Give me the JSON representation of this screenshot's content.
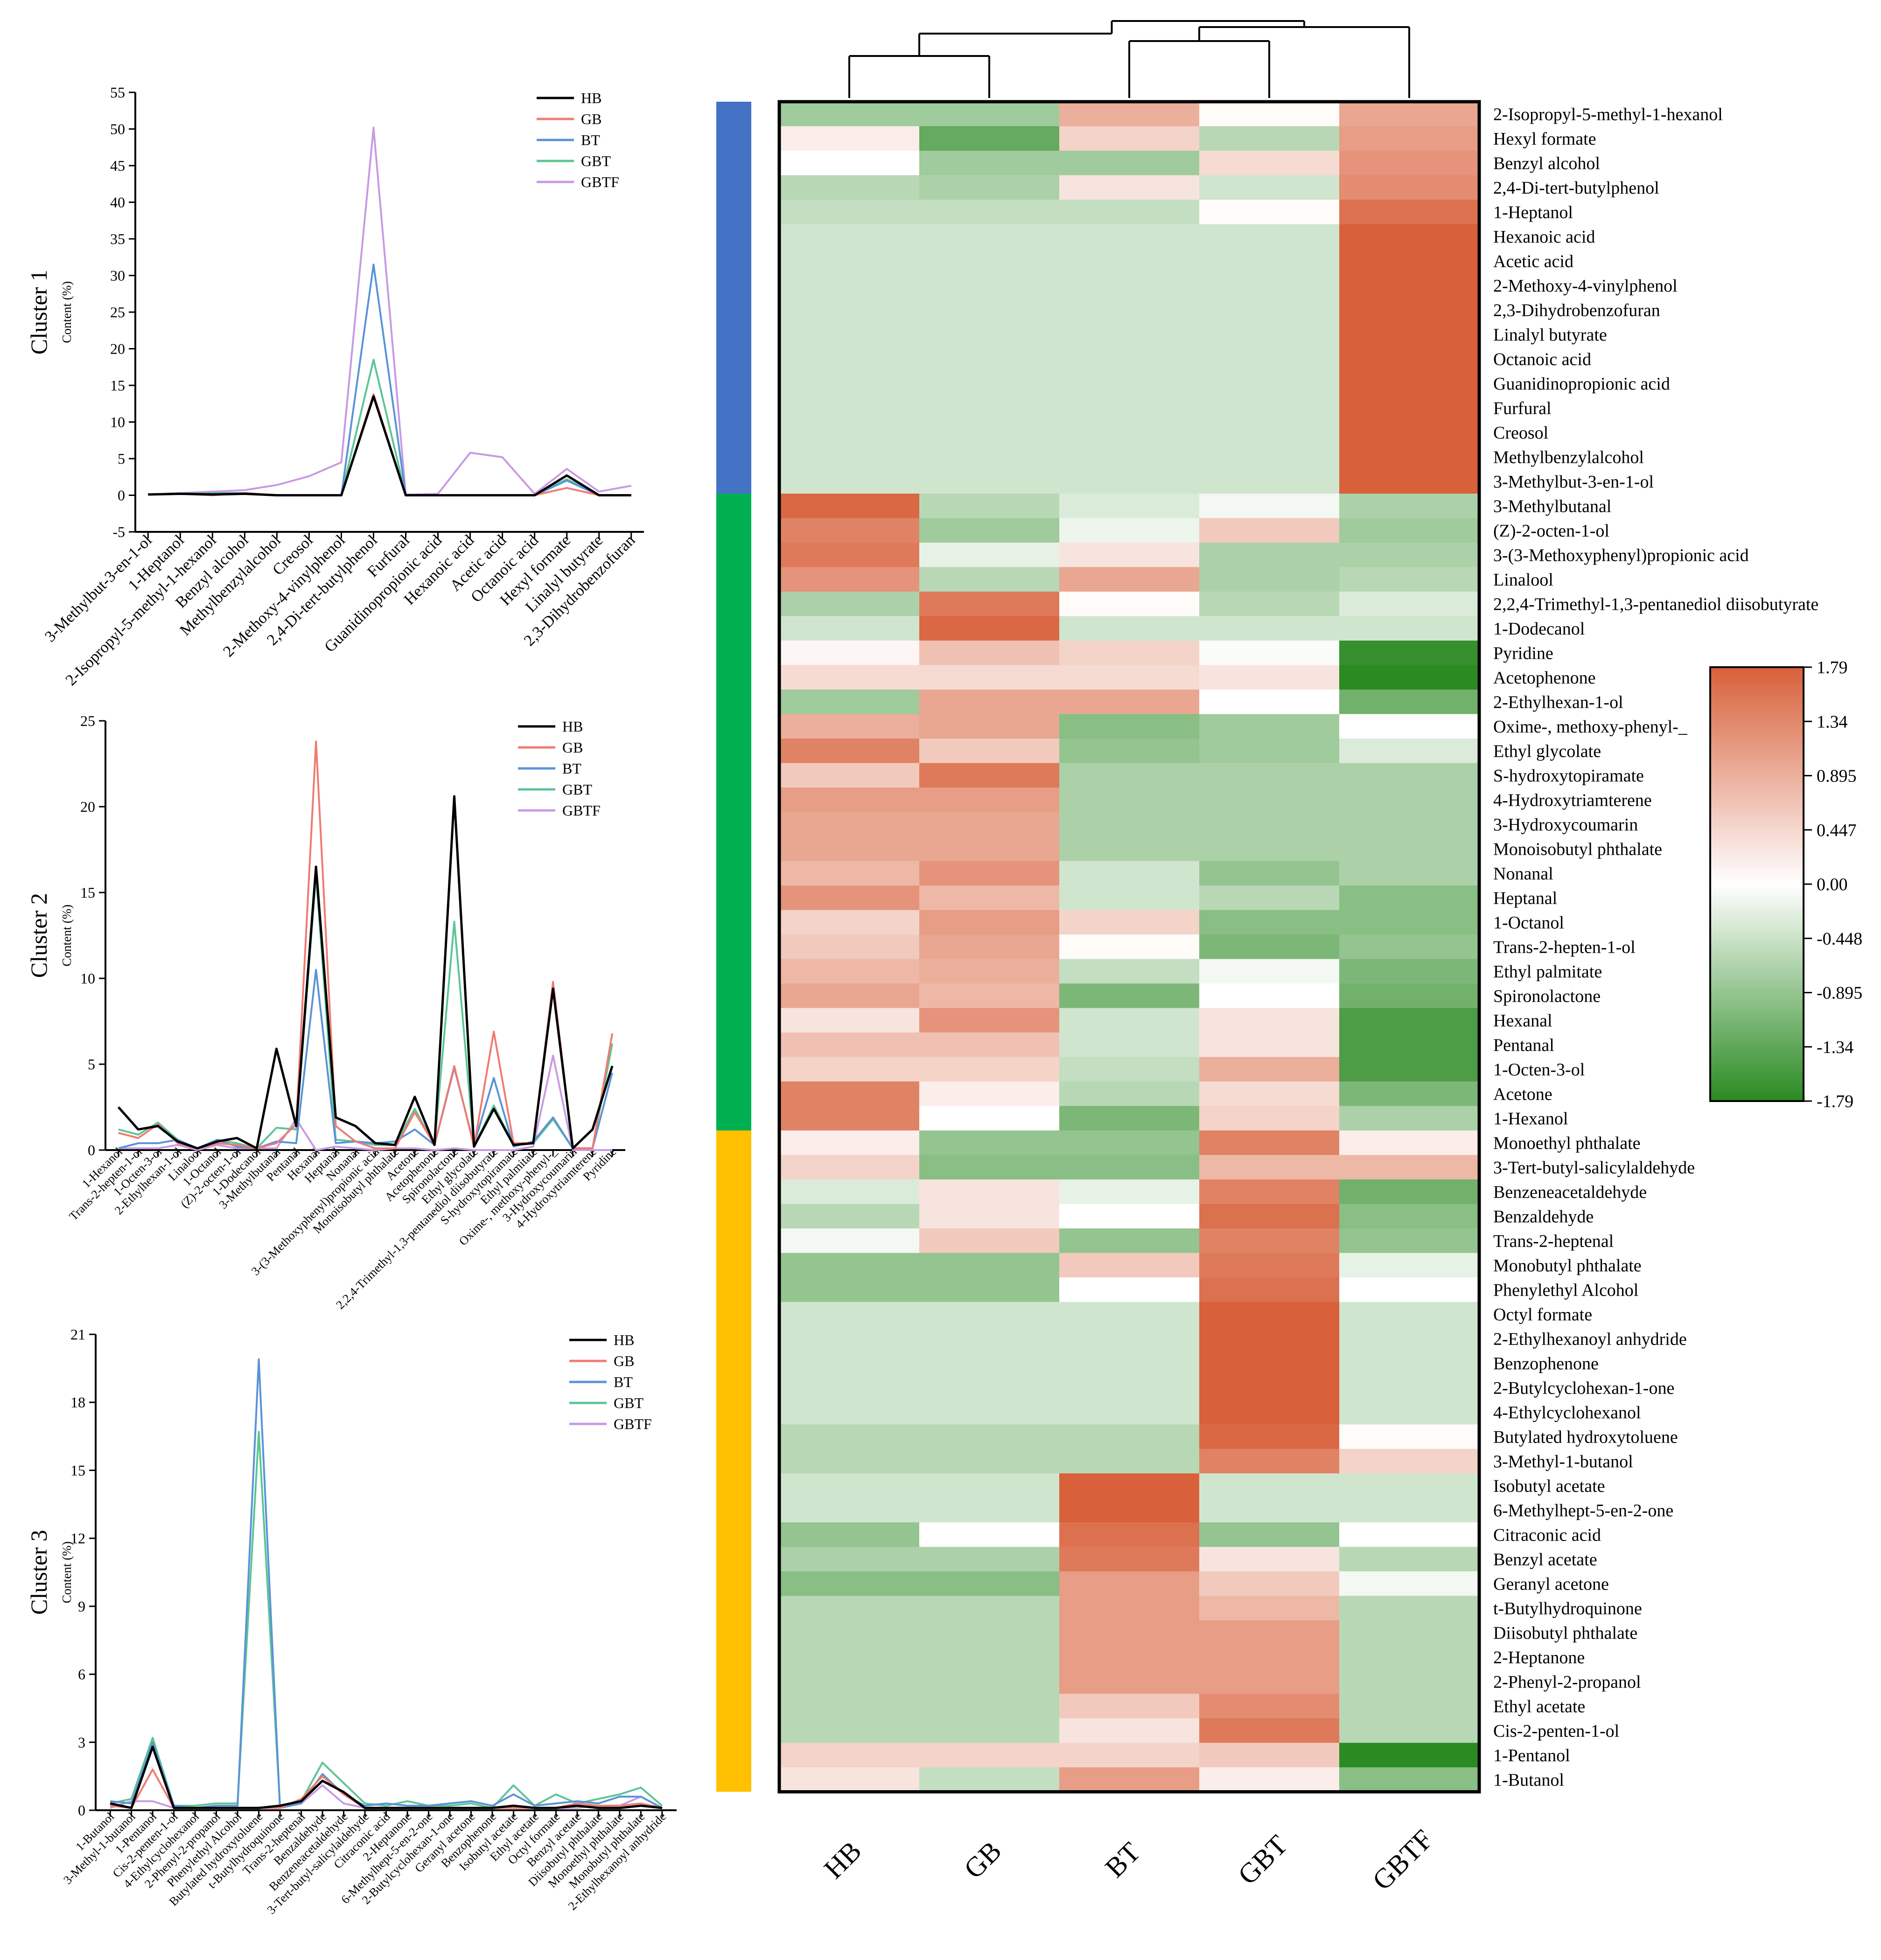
{
  "series_names": [
    "HB",
    "GB",
    "BT",
    "GBT",
    "GBTF"
  ],
  "series_colors": [
    "#000000",
    "#ef7b72",
    "#5a93d6",
    "#5cc594",
    "#c79ae3"
  ],
  "line_charts": [
    {
      "ylabel": "Cluster 1",
      "yunit": "Content (%)",
      "ylim": [
        -5,
        55
      ],
      "yticks": [
        -5,
        0,
        5,
        10,
        15,
        20,
        25,
        30,
        35,
        40,
        45,
        50,
        55
      ],
      "legend": "top-right",
      "categories": [
        "3-Methylbut-3-en-1-ol",
        "1-Heptanol",
        "2-Isopropyl-5-methyl-1-hexanol",
        "Benzyl alcohol",
        "Methylbenzylalcohol",
        "Creosol",
        "2-Methoxy-4-vinylphenol",
        "2,4-Di-tert-butylphenol",
        "Furfural",
        "Guanidinopropionic acid",
        "Hexanoic acid",
        "Acetic acid",
        "Octanoic acid",
        "Hexyl formate",
        "Linalyl butyrate",
        "2,3-Dihydrobenzofuran"
      ],
      "series": [
        {
          "name": "HB",
          "values": [
            0.1,
            0.2,
            0.1,
            0.2,
            0,
            0,
            0,
            13.5,
            0,
            0,
            0,
            0,
            0,
            2.7,
            0,
            0
          ]
        },
        {
          "name": "GB",
          "values": [
            0.1,
            0.2,
            0,
            0.3,
            0,
            0,
            0,
            13.8,
            0,
            0,
            0,
            0,
            0,
            1,
            0,
            0
          ]
        },
        {
          "name": "BT",
          "values": [
            0.1,
            0.2,
            0.2,
            0.3,
            0,
            0,
            0,
            31.5,
            0,
            0,
            0,
            0,
            0,
            2,
            0,
            0
          ]
        },
        {
          "name": "GBT",
          "values": [
            0.1,
            0.2,
            0.3,
            0.3,
            0,
            0,
            0,
            18.5,
            0,
            0,
            0,
            0,
            0,
            2.2,
            0,
            0
          ]
        },
        {
          "name": "GBTF",
          "values": [
            0.1,
            0.3,
            0.5,
            0.7,
            1.4,
            2.6,
            4.5,
            50.2,
            0.1,
            0.2,
            5.8,
            5.2,
            0.2,
            3.6,
            0.5,
            1.3
          ]
        }
      ]
    },
    {
      "ylabel": "Cluster 2",
      "yunit": "Content (%)",
      "ylim": [
        0,
        25
      ],
      "yticks": [
        0,
        5,
        10,
        15,
        20,
        25
      ],
      "legend": "top-right",
      "categories": [
        "1-Hexanol",
        "Trans-2-hepten-1-ol",
        "1-Octen-3-ol",
        "2-Ethylhexan-1-ol",
        "Linalool",
        "1-Octanol",
        "(Z)-2-octen-1-ol",
        "1-Dodecanol",
        "3-Methylbutanal",
        "Pentanal",
        "Hexanal",
        "Heptanal",
        "Nonanal",
        "3-(3-Methoxyphenyl)propionic acid",
        "Monoisobutyl phthalate",
        "Acetone",
        "Acetophenone",
        "Spironolactone",
        "Ethyl glycolate",
        "2,2,4-Trimethyl-1,3-pentanediol diisobutyrate",
        "S-hydroxytopiramate",
        "Ethyl palmitate",
        "Oxime-, methoxy-phenyl-_",
        "3-Hydroxycoumarin",
        "4-Hydroxytriamterene",
        "Pyridine"
      ],
      "series": [
        {
          "name": "HB",
          "values": [
            2.5,
            1.2,
            1.4,
            0.5,
            0.1,
            0.5,
            0.7,
            0.1,
            5.9,
            1.4,
            16.5,
            1.9,
            1.4,
            0.4,
            0.3,
            3.1,
            0.3,
            20.6,
            0.2,
            2.4,
            0.3,
            0.4,
            9.4,
            0.1,
            1.2,
            4.9
          ]
        },
        {
          "name": "GB",
          "values": [
            1,
            0.7,
            1.5,
            0.4,
            0.1,
            0.4,
            0.3,
            0.1,
            0.4,
            1.5,
            23.8,
            1.4,
            0.5,
            0.1,
            0.1,
            2.2,
            0.3,
            4.9,
            0.2,
            6.9,
            0.4,
            0.4,
            9.8,
            0.1,
            0.1,
            6.8
          ]
        },
        {
          "name": "BT",
          "values": [
            0.1,
            0.4,
            0.4,
            0.6,
            0.1,
            0.6,
            0.2,
            0.1,
            0.5,
            0.4,
            10.5,
            0.4,
            0.5,
            0.4,
            0.5,
            1.2,
            0.3,
            4.8,
            0.3,
            4.2,
            0.2,
            0.5,
            1.9,
            0.1,
            0.1,
            4.5
          ]
        },
        {
          "name": "GBT",
          "values": [
            1.2,
            0.9,
            1.6,
            0.6,
            0.1,
            0.6,
            0.4,
            0.1,
            1.3,
            1.2,
            16,
            0.6,
            0.5,
            0.3,
            0.3,
            2.4,
            0.3,
            13.3,
            0.2,
            2.6,
            0.3,
            0.4,
            1.8,
            0.1,
            0.1,
            6.2
          ]
        },
        {
          "name": "GBTF",
          "values": [
            0.1,
            0.1,
            0.1,
            0.3,
            0,
            0.3,
            0.1,
            0.1,
            0.1,
            1.8,
            0,
            0.2,
            0.1,
            0,
            0.1,
            0.1,
            0,
            0.1,
            0,
            0,
            0,
            0.2,
            5.5,
            0,
            0,
            0
          ]
        }
      ]
    },
    {
      "ylabel": "Cluster 3",
      "yunit": "Content (%)",
      "ylim": [
        0,
        21
      ],
      "yticks": [
        0,
        3,
        6,
        9,
        12,
        15,
        18,
        21
      ],
      "legend": "top-right",
      "categories": [
        "1-Butanol",
        "3-Methyl-1-butanol",
        "1-Pentanol",
        "Cis-2-penten-1-ol",
        "4-Ethylcyclohexanol",
        "2-Phenyl-2-propanol",
        "Phenylethyl Alcohol",
        "Butylated hydroxytoluene",
        "t-Butylhydroquinone",
        "Trans-2-heptenal",
        "Benzaldehyde",
        "Benzeneacetaldehyde",
        "3-Tert-butyl-salicylaldehyde",
        "Citraconic acid",
        "2-Heptanone",
        "6-Methylhept-5-en-2-one",
        "2-Butylcyclohexan-1-one",
        "Geranyl acetone",
        "Benzophenone",
        "Isobutyl acetate",
        "Ethyl acetate",
        "Octyl formate",
        "Benzyl acetate",
        "Diisobutyl phthalate",
        "Monoethyl phthalate",
        "Monobutyl phthalate",
        "2-Ethylhexanoyl anhydride"
      ],
      "series": [
        {
          "name": "HB",
          "values": [
            0.3,
            0.1,
            2.8,
            0.1,
            0.1,
            0.1,
            0.1,
            0.1,
            0.2,
            0.4,
            1.3,
            0.8,
            0.1,
            0.1,
            0.1,
            0.1,
            0.1,
            0.1,
            0.1,
            0.2,
            0.1,
            0.1,
            0.2,
            0.1,
            0.1,
            0.2,
            0.1
          ]
        },
        {
          "name": "GB",
          "values": [
            0.2,
            0.1,
            1.8,
            0.1,
            0.1,
            0.1,
            0.1,
            0.1,
            0.1,
            0.5,
            1.5,
            0.7,
            0.1,
            0.1,
            0.1,
            0.1,
            0.1,
            0.1,
            0.1,
            0.1,
            0.1,
            0.1,
            0.3,
            0.2,
            0.2,
            0.3,
            0.1
          ]
        },
        {
          "name": "BT",
          "values": [
            0.4,
            0.3,
            3,
            0.2,
            0.1,
            0.2,
            0.2,
            19.9,
            0.1,
            0.3,
            1.6,
            0.7,
            0.2,
            0.3,
            0.2,
            0.2,
            0.3,
            0.4,
            0.2,
            0.7,
            0.2,
            0.3,
            0.4,
            0.3,
            0.6,
            0.6,
            0.1
          ]
        },
        {
          "name": "GBT",
          "values": [
            0.3,
            0.5,
            3.2,
            0.2,
            0.2,
            0.3,
            0.3,
            16.7,
            0.2,
            0.4,
            2.1,
            1.2,
            0.3,
            0.2,
            0.4,
            0.2,
            0.2,
            0.3,
            0.1,
            1.1,
            0.2,
            0.7,
            0.3,
            0.5,
            0.7,
            1,
            0.2
          ]
        },
        {
          "name": "GBTF",
          "values": [
            0.1,
            0.4,
            0.4,
            0.1,
            0.1,
            0.1,
            0.1,
            0.1,
            0.2,
            0.3,
            1.1,
            0.3,
            0.1,
            0.1,
            0.1,
            0.1,
            0.1,
            0.1,
            0.1,
            0.1,
            0.1,
            0.1,
            0.1,
            0.2,
            0.2,
            0.6,
            0.1
          ]
        }
      ]
    }
  ],
  "chart_data": {
    "type": "heatmap",
    "columns": [
      "HB",
      "GB",
      "BT",
      "GBT",
      "GBTF"
    ],
    "rows": [
      "2-Isopropyl-5-methyl-1-hexanol",
      "Hexyl formate",
      "Benzyl alcohol",
      "2,4-Di-tert-butylphenol",
      "1-Heptanol",
      "Hexanoic acid",
      "Acetic acid",
      "2-Methoxy-4-vinylphenol",
      "2,3-Dihydrobenzofuran",
      "Linalyl butyrate",
      "Octanoic acid",
      "Guanidinopropionic acid",
      "Furfural",
      "Creosol",
      "Methylbenzylalcohol",
      "3-Methylbut-3-en-1-ol",
      "3-Methylbutanal",
      "(Z)-2-octen-1-ol",
      "3-(3-Methoxyphenyl)propionic acid",
      "Linalool",
      "2,2,4-Trimethyl-1,3-pentanediol diisobutyrate",
      "1-Dodecanol",
      "Pyridine",
      "Acetophenone",
      "2-Ethylhexan-1-ol",
      "Oxime-, methoxy-phenyl-_",
      "Ethyl glycolate",
      "S-hydroxytopiramate",
      "4-Hydroxytriamterene",
      "3-Hydroxycoumarin",
      "Monoisobutyl phthalate",
      "Nonanal",
      "Heptanal",
      "1-Octanol",
      "Trans-2-hepten-1-ol",
      "Ethyl palmitate",
      "Spironolactone",
      "Hexanal",
      "Pentanal",
      "1-Octen-3-ol",
      "Acetone",
      "1-Hexanol",
      "Monoethyl phthalate",
      "3-Tert-butyl-salicylaldehyde",
      "Benzeneacetaldehyde",
      "Benzaldehyde",
      "Trans-2-heptenal",
      "Monobutyl phthalate",
      "Phenylethyl Alcohol",
      "Octyl formate",
      "2-Ethylhexanoyl anhydride",
      "Benzophenone",
      "2-Butylcyclohexan-1-one",
      "4-Ethylcyclohexanol",
      "Butylated hydroxytoluene",
      "3-Methyl-1-butanol",
      "Isobutyl acetate",
      "6-Methylhept-5-en-2-one",
      "Citraconic acid",
      "Benzyl acetate",
      "Geranyl acetone",
      "t-Butylhydroquinone",
      "Diisobutyl phthalate",
      "2-Heptanone",
      "2-Phenyl-2-propanol",
      "Ethyl acetate",
      "Cis-2-penten-1-ol",
      "1-Pentanol",
      "1-Butanol"
    ],
    "values": [
      [
        -0.8,
        -0.8,
        0.9,
        0.05,
        1.0
      ],
      [
        0.2,
        -1.3,
        0.5,
        -0.6,
        1.1
      ],
      [
        0.0,
        -0.8,
        -0.8,
        0.4,
        1.2
      ],
      [
        -0.6,
        -0.7,
        0.3,
        -0.4,
        1.3
      ],
      [
        -0.5,
        -0.5,
        -0.5,
        0.05,
        1.6
      ],
      [
        -0.4,
        -0.4,
        -0.4,
        -0.4,
        1.79
      ],
      [
        -0.4,
        -0.4,
        -0.4,
        -0.4,
        1.79
      ],
      [
        -0.4,
        -0.4,
        -0.4,
        -0.4,
        1.79
      ],
      [
        -0.4,
        -0.4,
        -0.4,
        -0.4,
        1.79
      ],
      [
        -0.4,
        -0.4,
        -0.4,
        -0.4,
        1.79
      ],
      [
        -0.4,
        -0.4,
        -0.4,
        -0.4,
        1.79
      ],
      [
        -0.4,
        -0.4,
        -0.4,
        -0.4,
        1.79
      ],
      [
        -0.4,
        -0.4,
        -0.4,
        -0.4,
        1.79
      ],
      [
        -0.4,
        -0.4,
        -0.4,
        -0.4,
        1.79
      ],
      [
        -0.4,
        -0.4,
        -0.4,
        -0.4,
        1.79
      ],
      [
        -0.4,
        -0.4,
        -0.4,
        -0.4,
        1.79
      ],
      [
        1.7,
        -0.6,
        -0.3,
        -0.1,
        -0.7
      ],
      [
        1.4,
        -0.8,
        -0.15,
        0.6,
        -0.8
      ],
      [
        1.5,
        -0.2,
        0.3,
        -0.7,
        -0.7
      ],
      [
        1.2,
        -0.6,
        1.0,
        -0.7,
        -0.6
      ],
      [
        -0.7,
        1.5,
        0.05,
        -0.6,
        -0.3
      ],
      [
        -0.4,
        1.7,
        -0.4,
        -0.4,
        -0.4
      ],
      [
        0.1,
        0.7,
        0.5,
        -0.05,
        -1.7
      ],
      [
        0.4,
        0.4,
        0.4,
        0.3,
        -1.79
      ],
      [
        -0.8,
        1.0,
        1.0,
        0.0,
        -1.2
      ],
      [
        0.9,
        1.0,
        -1.0,
        -0.8,
        0.0
      ],
      [
        1.4,
        0.6,
        -0.9,
        -0.8,
        -0.3
      ],
      [
        0.6,
        1.5,
        -0.7,
        -0.7,
        -0.7
      ],
      [
        1.1,
        1.1,
        -0.7,
        -0.7,
        -0.7
      ],
      [
        1.0,
        1.0,
        -0.7,
        -0.7,
        -0.7
      ],
      [
        1.0,
        1.0,
        -0.7,
        -0.7,
        -0.7
      ],
      [
        0.8,
        1.2,
        -0.4,
        -0.9,
        -0.7
      ],
      [
        1.2,
        0.8,
        -0.4,
        -0.6,
        -1.0
      ],
      [
        0.5,
        1.1,
        0.5,
        -1.0,
        -1.0
      ],
      [
        0.6,
        1.0,
        0.05,
        -1.1,
        -0.9
      ],
      [
        0.8,
        0.9,
        -0.5,
        -0.1,
        -1.1
      ],
      [
        1.0,
        0.8,
        -1.1,
        0.0,
        -1.2
      ],
      [
        0.3,
        1.2,
        -0.4,
        0.3,
        -1.5
      ],
      [
        0.7,
        0.7,
        -0.4,
        0.3,
        -1.5
      ],
      [
        0.5,
        0.5,
        -0.5,
        0.9,
        -1.5
      ],
      [
        1.4,
        0.2,
        -0.6,
        0.4,
        -1.1
      ],
      [
        1.4,
        0.0,
        -1.1,
        0.5,
        -0.7
      ],
      [
        0.2,
        -0.9,
        -0.9,
        1.4,
        0.2
      ],
      [
        0.5,
        -1.0,
        -1.0,
        0.8,
        0.8
      ],
      [
        -0.3,
        0.3,
        -0.2,
        1.4,
        -1.2
      ],
      [
        -0.6,
        0.3,
        0.0,
        1.6,
        -1.0
      ],
      [
        -0.1,
        0.6,
        -0.9,
        1.4,
        -0.9
      ],
      [
        -0.9,
        -0.9,
        0.6,
        1.5,
        -0.2
      ],
      [
        -0.9,
        -0.9,
        0.0,
        1.6,
        0.0
      ],
      [
        -0.4,
        -0.4,
        -0.4,
        1.79,
        -0.4
      ],
      [
        -0.4,
        -0.4,
        -0.4,
        1.79,
        -0.4
      ],
      [
        -0.4,
        -0.4,
        -0.4,
        1.79,
        -0.4
      ],
      [
        -0.4,
        -0.4,
        -0.4,
        1.79,
        -0.4
      ],
      [
        -0.4,
        -0.4,
        -0.4,
        1.79,
        -0.4
      ],
      [
        -0.6,
        -0.6,
        -0.6,
        1.7,
        0.05
      ],
      [
        -0.6,
        -0.6,
        -0.6,
        1.4,
        0.5
      ],
      [
        -0.4,
        -0.4,
        1.79,
        -0.4,
        -0.4
      ],
      [
        -0.4,
        -0.4,
        1.79,
        -0.4,
        -0.4
      ],
      [
        -0.9,
        0.0,
        1.6,
        -0.9,
        0.0
      ],
      [
        -0.7,
        -0.7,
        1.5,
        0.3,
        -0.6
      ],
      [
        -1.0,
        -1.0,
        1.1,
        0.6,
        -0.1
      ],
      [
        -0.6,
        -0.6,
        1.1,
        0.8,
        -0.6
      ],
      [
        -0.6,
        -0.6,
        1.1,
        1.1,
        -0.6
      ],
      [
        -0.6,
        -0.6,
        1.1,
        1.1,
        -0.6
      ],
      [
        -0.6,
        -0.6,
        1.1,
        1.1,
        -0.6
      ],
      [
        -0.6,
        -0.6,
        0.6,
        1.3,
        -0.6
      ],
      [
        -0.6,
        -0.6,
        0.3,
        1.5,
        -0.6
      ],
      [
        0.5,
        0.5,
        0.5,
        0.6,
        -1.79
      ],
      [
        0.3,
        -0.5,
        1.1,
        0.2,
        -1.0
      ]
    ],
    "colorbar_ticks": [
      "1.79",
      "1.34",
      "0.895",
      "0.447",
      "0.00",
      "-0.448",
      "-0.895",
      "-1.34",
      "-1.79"
    ],
    "vmin": -1.79,
    "vmax": 1.79,
    "color_high": "#d8603a",
    "color_mid": "#ffffff",
    "color_low": "#2b8a22",
    "cluster_bar": [
      {
        "color": "#4472c4",
        "rows": 16
      },
      {
        "color": "#00b050",
        "rows": 26
      },
      {
        "color": "#ffc000",
        "rows": 27
      }
    ],
    "dendrogram": "((HB,GB),((BT,GBT),GBTF))"
  }
}
